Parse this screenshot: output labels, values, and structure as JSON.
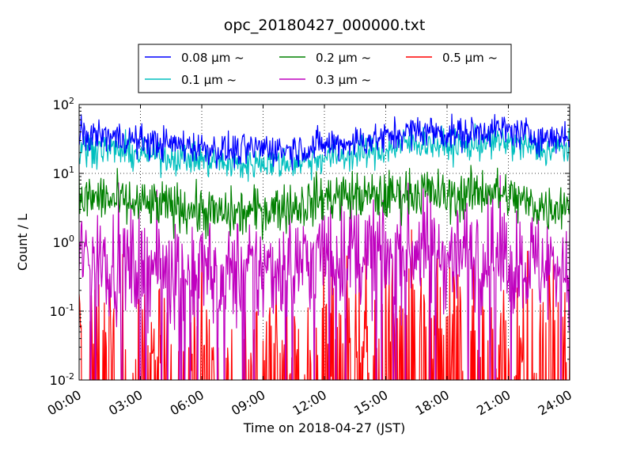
{
  "chart_data": {
    "type": "line",
    "title": "opc_20180427_000000.txt",
    "xlabel": "Time on 2018-04-27 (JST)",
    "ylabel": "Count / L",
    "xlim": [
      "00:00",
      "24:00"
    ],
    "ylim": [
      0.01,
      100
    ],
    "yscale": "log",
    "grid": true,
    "legend_position": "top",
    "x_tick_labels": [
      "00:00",
      "03:00",
      "06:00",
      "09:00",
      "12:00",
      "15:00",
      "18:00",
      "21:00",
      "24:00"
    ],
    "y_ticks": [
      {
        "base": "10",
        "exp": "-2"
      },
      {
        "base": "10",
        "exp": "-1"
      },
      {
        "base": "10",
        "exp": "0"
      },
      {
        "base": "10",
        "exp": "1"
      },
      {
        "base": "10",
        "exp": "2"
      }
    ],
    "x_hours": [
      0,
      1,
      2,
      3,
      4,
      5,
      6,
      7,
      8,
      9,
      10,
      11,
      12,
      13,
      14,
      15,
      16,
      17,
      18,
      19,
      20,
      21,
      22,
      23,
      24
    ],
    "series": [
      {
        "name": "0.08 μm ~",
        "color": "#0000ff",
        "noise": 0.12,
        "values": [
          34,
          36,
          33,
          29,
          27,
          26,
          24,
          22,
          21,
          24,
          22,
          23,
          26,
          28,
          30,
          33,
          40,
          42,
          38,
          37,
          44,
          42,
          36,
          32,
          38
        ]
      },
      {
        "name": "0.1 μm ~",
        "color": "#00bfbf",
        "noise": 0.12,
        "values": [
          22,
          24,
          21,
          19,
          18,
          17,
          16,
          14,
          13,
          15,
          14,
          15,
          17,
          18,
          20,
          22,
          27,
          28,
          25,
          25,
          29,
          28,
          24,
          21,
          24
        ]
      },
      {
        "name": "0.2 μm ~",
        "color": "#008000",
        "noise": 0.18,
        "values": [
          4.0,
          4.5,
          3.8,
          3.5,
          3.3,
          3.3,
          2.8,
          2.5,
          2.6,
          3.0,
          3.3,
          3.5,
          4.5,
          4.8,
          4.6,
          4.5,
          5.3,
          5.5,
          4.5,
          5.0,
          5.8,
          4.6,
          3.6,
          3.2,
          3.8
        ]
      },
      {
        "name": "0.3 μm ~",
        "color": "#bf00bf",
        "noise": 0.4,
        "dropout": 0.05,
        "values": [
          0.6,
          0.6,
          0.5,
          0.45,
          0.45,
          0.45,
          0.4,
          0.35,
          0.35,
          0.4,
          0.45,
          0.5,
          0.7,
          0.7,
          0.65,
          0.65,
          0.8,
          0.8,
          0.65,
          0.7,
          0.75,
          0.6,
          0.5,
          0.45,
          0.5
        ]
      },
      {
        "name": "0.5 μm ~",
        "color": "#ff0000",
        "noise": 0.55,
        "dropout": 0.55,
        "values": [
          0.05,
          0.05,
          0.04,
          0.03,
          0.03,
          0.03,
          0.03,
          0.02,
          0.02,
          0.03,
          0.03,
          0.04,
          0.06,
          0.06,
          0.06,
          0.06,
          0.07,
          0.07,
          0.06,
          0.06,
          0.07,
          0.05,
          0.04,
          0.03,
          0.04
        ]
      }
    ]
  }
}
